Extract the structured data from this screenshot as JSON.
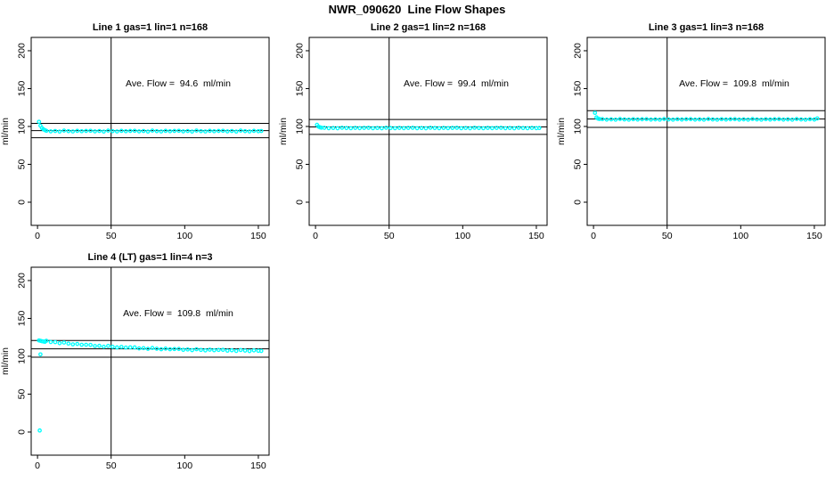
{
  "title": "NWR_090620  Line Flow Shapes",
  "colors": {
    "point": "#00ffff",
    "axis": "#000000",
    "background": "#ffffff"
  },
  "axes": {
    "x_ticks": [
      0,
      50,
      100,
      150
    ],
    "y_ticks": [
      0,
      50,
      100,
      150,
      200
    ],
    "y_label": "ml/min",
    "xlim": [
      -4.3,
      157.3
    ],
    "ylim": [
      -30.6,
      217.6
    ],
    "grid": false
  },
  "chart_data": [
    {
      "type": "scatter",
      "title": "Line 1 gas=1 lin=1 n=168",
      "gas": 1,
      "lin": 1,
      "n": 168,
      "ave_flow": 94.6,
      "ave_flow_label": "Ave. Flow =  94.6  ml/min",
      "ref_lines": {
        "mean": 94.6,
        "upper": 104.1,
        "lower": 85.1
      },
      "vline_x": 50,
      "points": [
        [
          1,
          106.2
        ],
        [
          2,
          101.0
        ],
        [
          3,
          98.0
        ],
        [
          4,
          96.3
        ],
        [
          5,
          95.2
        ],
        [
          6,
          94.3
        ],
        [
          9,
          93.5
        ],
        [
          12,
          94.0
        ],
        [
          15,
          93.3
        ],
        [
          18,
          94.5
        ],
        [
          21,
          93.8
        ],
        [
          24,
          93.4
        ],
        [
          27,
          94.2
        ],
        [
          30,
          93.7
        ],
        [
          33,
          94.1
        ],
        [
          36,
          94.3
        ],
        [
          39,
          93.5
        ],
        [
          42,
          94.0
        ],
        [
          45,
          93.3
        ],
        [
          48,
          94.5
        ],
        [
          51,
          93.8
        ],
        [
          54,
          93.4
        ],
        [
          57,
          94.2
        ],
        [
          60,
          93.7
        ],
        [
          63,
          94.1
        ],
        [
          66,
          94.3
        ],
        [
          69,
          93.5
        ],
        [
          72,
          94.0
        ],
        [
          75,
          93.3
        ],
        [
          78,
          94.5
        ],
        [
          81,
          93.8
        ],
        [
          84,
          93.4
        ],
        [
          87,
          94.2
        ],
        [
          90,
          93.7
        ],
        [
          93,
          94.1
        ],
        [
          96,
          94.3
        ],
        [
          99,
          93.5
        ],
        [
          102,
          94.0
        ],
        [
          105,
          93.3
        ],
        [
          108,
          94.5
        ],
        [
          111,
          93.8
        ],
        [
          114,
          93.4
        ],
        [
          117,
          94.2
        ],
        [
          120,
          93.7
        ],
        [
          123,
          94.1
        ],
        [
          126,
          94.3
        ],
        [
          129,
          93.5
        ],
        [
          132,
          94.0
        ],
        [
          135,
          93.3
        ],
        [
          138,
          94.5
        ],
        [
          141,
          93.8
        ],
        [
          144,
          93.4
        ],
        [
          147,
          94.2
        ],
        [
          150,
          93.7
        ],
        [
          152,
          94.0
        ]
      ]
    },
    {
      "type": "scatter",
      "title": "Line 2 gas=1 lin=2 n=168",
      "gas": 1,
      "lin": 2,
      "n": 168,
      "ave_flow": 99.4,
      "ave_flow_label": "Ave. Flow =  99.4  ml/min",
      "ref_lines": {
        "mean": 99.4,
        "upper": 109.3,
        "lower": 89.5
      },
      "vline_x": 50,
      "points": [
        [
          1,
          102.2
        ],
        [
          2,
          99.8
        ],
        [
          3,
          98.9
        ],
        [
          4,
          98.4
        ],
        [
          6,
          98.2
        ],
        [
          9,
          97.7
        ],
        [
          12,
          98.0
        ],
        [
          15,
          97.6
        ],
        [
          18,
          98.3
        ],
        [
          21,
          97.9
        ],
        [
          24,
          97.7
        ],
        [
          27,
          98.1
        ],
        [
          30,
          97.8
        ],
        [
          33,
          98.1
        ],
        [
          36,
          98.2
        ],
        [
          39,
          97.7
        ],
        [
          42,
          98.0
        ],
        [
          45,
          97.6
        ],
        [
          48,
          98.3
        ],
        [
          51,
          97.9
        ],
        [
          54,
          97.7
        ],
        [
          57,
          98.1
        ],
        [
          60,
          97.8
        ],
        [
          63,
          98.1
        ],
        [
          66,
          98.2
        ],
        [
          69,
          97.7
        ],
        [
          72,
          98.0
        ],
        [
          75,
          97.6
        ],
        [
          78,
          98.3
        ],
        [
          81,
          97.9
        ],
        [
          84,
          97.7
        ],
        [
          87,
          98.1
        ],
        [
          90,
          97.8
        ],
        [
          93,
          98.1
        ],
        [
          96,
          98.2
        ],
        [
          99,
          97.7
        ],
        [
          102,
          98.0
        ],
        [
          105,
          97.6
        ],
        [
          108,
          98.3
        ],
        [
          111,
          97.9
        ],
        [
          114,
          97.7
        ],
        [
          117,
          98.1
        ],
        [
          120,
          97.8
        ],
        [
          123,
          98.1
        ],
        [
          126,
          98.2
        ],
        [
          129,
          97.7
        ],
        [
          132,
          98.0
        ],
        [
          135,
          97.6
        ],
        [
          138,
          98.3
        ],
        [
          141,
          97.9
        ],
        [
          144,
          97.7
        ],
        [
          147,
          98.1
        ],
        [
          150,
          97.8
        ],
        [
          152,
          98.0
        ]
      ]
    },
    {
      "type": "scatter",
      "title": "Line 3 gas=1 lin=3 n=168",
      "gas": 1,
      "lin": 3,
      "n": 168,
      "ave_flow": 109.8,
      "ave_flow_label": "Ave. Flow =  109.8  ml/min",
      "ref_lines": {
        "mean": 109.8,
        "upper": 120.8,
        "lower": 98.8
      },
      "vline_x": 50,
      "points": [
        [
          1,
          118.0
        ],
        [
          2,
          112.0
        ],
        [
          3,
          110.4
        ],
        [
          4,
          109.9
        ],
        [
          6,
          109.7
        ],
        [
          9,
          109.1
        ],
        [
          12,
          109.4
        ],
        [
          15,
          109.0
        ],
        [
          18,
          109.8
        ],
        [
          21,
          109.3
        ],
        [
          24,
          109.0
        ],
        [
          27,
          109.6
        ],
        [
          30,
          109.2
        ],
        [
          33,
          109.5
        ],
        [
          36,
          109.7
        ],
        [
          39,
          109.1
        ],
        [
          42,
          109.4
        ],
        [
          45,
          109.0
        ],
        [
          48,
          109.8
        ],
        [
          51,
          109.3
        ],
        [
          54,
          109.0
        ],
        [
          57,
          109.6
        ],
        [
          60,
          109.2
        ],
        [
          63,
          109.5
        ],
        [
          66,
          109.7
        ],
        [
          69,
          109.1
        ],
        [
          72,
          109.4
        ],
        [
          75,
          109.0
        ],
        [
          78,
          109.8
        ],
        [
          81,
          109.3
        ],
        [
          84,
          109.0
        ],
        [
          87,
          109.6
        ],
        [
          90,
          109.2
        ],
        [
          93,
          109.5
        ],
        [
          96,
          109.7
        ],
        [
          99,
          109.1
        ],
        [
          102,
          109.4
        ],
        [
          105,
          109.0
        ],
        [
          108,
          109.8
        ],
        [
          111,
          109.3
        ],
        [
          114,
          109.0
        ],
        [
          117,
          109.6
        ],
        [
          120,
          109.2
        ],
        [
          123,
          109.5
        ],
        [
          126,
          109.7
        ],
        [
          129,
          109.1
        ],
        [
          132,
          109.4
        ],
        [
          135,
          109.0
        ],
        [
          138,
          109.8
        ],
        [
          141,
          109.3
        ],
        [
          144,
          109.0
        ],
        [
          147,
          109.6
        ],
        [
          150,
          109.2
        ],
        [
          152,
          110.6
        ]
      ]
    },
    {
      "type": "scatter",
      "title": "Line 4 (LT) gas=1 lin=4 n=3",
      "gas": 1,
      "lin": 4,
      "n": 3,
      "ave_flow": 109.8,
      "ave_flow_label": "Ave. Flow =  109.8  ml/min",
      "ref_lines": {
        "mean": 109.8,
        "upper": 120.8,
        "lower": 98.8
      },
      "vline_x": 50,
      "points": [
        [
          1.5,
          2.0
        ],
        [
          2,
          102.5
        ],
        [
          1,
          120.9
        ],
        [
          2,
          120.4
        ],
        [
          3,
          119.9
        ],
        [
          4,
          119.5
        ],
        [
          5,
          119.1
        ],
        [
          6,
          120.5
        ],
        [
          9,
          118.8
        ],
        [
          12,
          118.7
        ],
        [
          15,
          117.3
        ],
        [
          18,
          118.1
        ],
        [
          21,
          116.8
        ],
        [
          24,
          115.8
        ],
        [
          27,
          116.3
        ],
        [
          30,
          115.2
        ],
        [
          33,
          115.2
        ],
        [
          36,
          115.0
        ],
        [
          39,
          113.6
        ],
        [
          42,
          113.8
        ],
        [
          45,
          112.6
        ],
        [
          48,
          113.7
        ],
        [
          51,
          112.5
        ],
        [
          54,
          111.7
        ],
        [
          57,
          112.4
        ],
        [
          60,
          111.5
        ],
        [
          63,
          111.8
        ],
        [
          66,
          111.7
        ],
        [
          69,
          110.4
        ],
        [
          72,
          110.8
        ],
        [
          75,
          109.8
        ],
        [
          78,
          111.0
        ],
        [
          81,
          110.0
        ],
        [
          84,
          109.3
        ],
        [
          87,
          110.1
        ],
        [
          90,
          109.3
        ],
        [
          93,
          109.6
        ],
        [
          96,
          109.7
        ],
        [
          99,
          108.5
        ],
        [
          102,
          109.0
        ],
        [
          105,
          108.1
        ],
        [
          108,
          109.3
        ],
        [
          111,
          108.4
        ],
        [
          114,
          107.8
        ],
        [
          117,
          108.7
        ],
        [
          120,
          108.0
        ],
        [
          123,
          108.4
        ],
        [
          126,
          108.5
        ],
        [
          129,
          107.4
        ],
        [
          132,
          107.9
        ],
        [
          135,
          107.0
        ],
        [
          138,
          108.3
        ],
        [
          141,
          107.5
        ],
        [
          144,
          106.9
        ],
        [
          147,
          107.8
        ],
        [
          150,
          107.2
        ],
        [
          152,
          107.0
        ]
      ]
    }
  ]
}
